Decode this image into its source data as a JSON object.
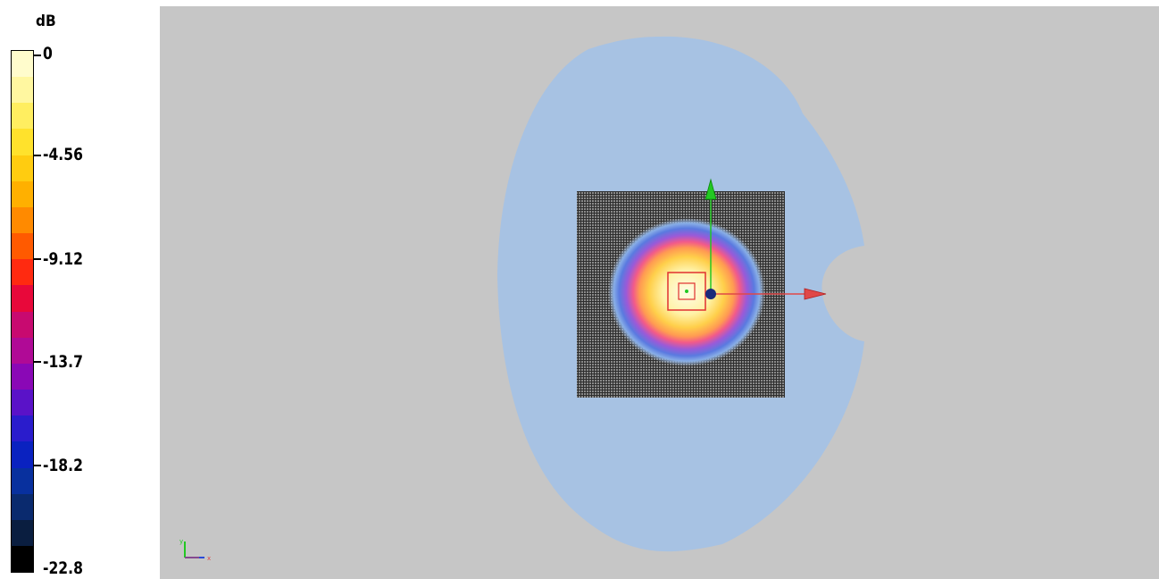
{
  "legend": {
    "unit": "dB",
    "ticks": [
      "0",
      "-4.56",
      "-9.12",
      "-13.7",
      "-18.2",
      "-22.8"
    ],
    "colors": [
      "#fffccc",
      "#fff7a0",
      "#ffee60",
      "#ffe22c",
      "#ffcc10",
      "#ffb000",
      "#ff8a00",
      "#ff5a00",
      "#ff2a10",
      "#e8083a",
      "#c80a70",
      "#b00a96",
      "#8a08b6",
      "#5a12c8",
      "#2a1ccc",
      "#0a22c0",
      "#08309e",
      "#0a2a6e",
      "#0a1e40",
      "#000000"
    ]
  },
  "viewport": {
    "background": "#c6c6c6",
    "field_color": "#a7c2e3",
    "grid_color": "#3a3a3a",
    "axes": {
      "x_arrow": "#e04848",
      "y_arrow": "#22c822",
      "origin": "#1a2a7a",
      "source_box": "#e03030"
    },
    "triad_labels": {
      "x": "x",
      "y": "y"
    }
  }
}
